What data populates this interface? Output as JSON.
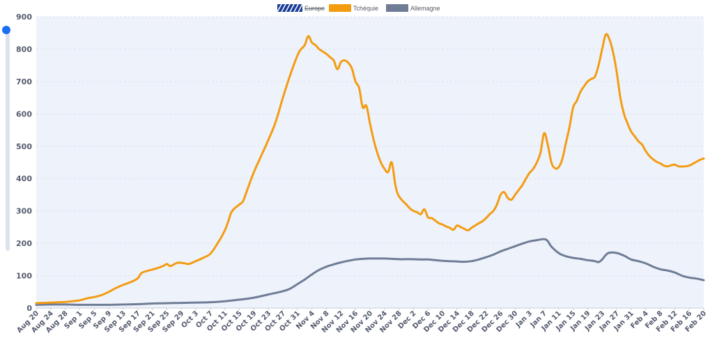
{
  "chart_data": {
    "type": "line",
    "title": "",
    "xlabel": "",
    "ylabel": "",
    "ylim": [
      0,
      900
    ],
    "yticks": [
      0,
      100,
      200,
      300,
      400,
      500,
      600,
      700,
      800,
      900
    ],
    "grid": true,
    "legend_position": "top-center",
    "x_range": [
      0,
      184
    ],
    "xtick_labels": [
      "Aug 20",
      "Aug 24",
      "Aug 28",
      "Sep 1",
      "Sep 5",
      "Sep 9",
      "Sep 13",
      "Sep 17",
      "Sep 21",
      "Sep 25",
      "Sep 29",
      "Oct 3",
      "Oct 7",
      "Oct 11",
      "Oct 15",
      "Oct 19",
      "Oct 23",
      "Oct 27",
      "Oct 31",
      "Nov 4",
      "Nov 8",
      "Nov 12",
      "Nov 16",
      "Nov 20",
      "Nov 24",
      "Nov 28",
      "Dec 2",
      "Dec 6",
      "Dec 10",
      "Dec 14",
      "Dec 18",
      "Dec 22",
      "Dec 26",
      "Dec 30",
      "Jan 3",
      "Jan 7",
      "Jan 11",
      "Jan 15",
      "Jan 19",
      "Jan 23",
      "Jan 27",
      "Jan 31",
      "Feb 4",
      "Feb 8",
      "Feb 12",
      "Feb 16",
      "Feb 20"
    ],
    "tick_step_days": 4,
    "series": [
      {
        "name": "Europe",
        "color": "#1a3d96",
        "hidden": true,
        "points": []
      },
      {
        "name": "Tchéquie",
        "color": "#f39c12",
        "hidden": false,
        "points": [
          [
            0,
            15
          ],
          [
            2,
            16
          ],
          [
            4,
            17
          ],
          [
            6,
            18
          ],
          [
            8,
            19
          ],
          [
            10,
            21
          ],
          [
            12,
            24
          ],
          [
            14,
            30
          ],
          [
            16,
            34
          ],
          [
            18,
            40
          ],
          [
            20,
            50
          ],
          [
            22,
            62
          ],
          [
            24,
            72
          ],
          [
            26,
            80
          ],
          [
            28,
            92
          ],
          [
            29,
            108
          ],
          [
            31,
            116
          ],
          [
            33,
            122
          ],
          [
            35,
            130
          ],
          [
            36,
            136
          ],
          [
            37,
            130
          ],
          [
            39,
            140
          ],
          [
            41,
            138
          ],
          [
            42,
            136
          ],
          [
            44,
            145
          ],
          [
            46,
            155
          ],
          [
            48,
            168
          ],
          [
            50,
            200
          ],
          [
            52,
            240
          ],
          [
            53,
            270
          ],
          [
            54,
            300
          ],
          [
            56,
            320
          ],
          [
            57,
            330
          ],
          [
            58,
            360
          ],
          [
            60,
            420
          ],
          [
            62,
            470
          ],
          [
            64,
            520
          ],
          [
            66,
            575
          ],
          [
            68,
            650
          ],
          [
            70,
            720
          ],
          [
            72,
            780
          ],
          [
            73,
            800
          ],
          [
            74,
            812
          ],
          [
            75,
            840
          ],
          [
            76,
            820
          ],
          [
            77,
            812
          ],
          [
            78,
            800
          ],
          [
            80,
            785
          ],
          [
            81,
            775
          ],
          [
            82,
            765
          ],
          [
            83,
            738
          ],
          [
            84,
            760
          ],
          [
            85,
            765
          ],
          [
            86,
            758
          ],
          [
            87,
            740
          ],
          [
            88,
            700
          ],
          [
            89,
            680
          ],
          [
            90,
            620
          ],
          [
            91,
            625
          ],
          [
            92,
            570
          ],
          [
            93,
            520
          ],
          [
            94,
            480
          ],
          [
            95,
            450
          ],
          [
            96,
            430
          ],
          [
            97,
            420
          ],
          [
            98,
            450
          ],
          [
            99,
            380
          ],
          [
            100,
            345
          ],
          [
            102,
            320
          ],
          [
            103,
            308
          ],
          [
            104,
            300
          ],
          [
            105,
            296
          ],
          [
            106,
            290
          ],
          [
            107,
            305
          ],
          [
            108,
            280
          ],
          [
            109,
            278
          ],
          [
            110,
            270
          ],
          [
            111,
            262
          ],
          [
            112,
            258
          ],
          [
            113,
            252
          ],
          [
            114,
            248
          ],
          [
            115,
            242
          ],
          [
            116,
            255
          ],
          [
            117,
            250
          ],
          [
            118,
            245
          ],
          [
            119,
            240
          ],
          [
            120,
            248
          ],
          [
            121,
            255
          ],
          [
            122,
            262
          ],
          [
            123,
            268
          ],
          [
            124,
            278
          ],
          [
            125,
            290
          ],
          [
            126,
            300
          ],
          [
            127,
            320
          ],
          [
            128,
            350
          ],
          [
            129,
            358
          ],
          [
            130,
            340
          ],
          [
            131,
            335
          ],
          [
            132,
            350
          ],
          [
            133,
            365
          ],
          [
            134,
            380
          ],
          [
            135,
            400
          ],
          [
            136,
            418
          ],
          [
            137,
            430
          ],
          [
            138,
            450
          ],
          [
            139,
            480
          ],
          [
            140,
            540
          ],
          [
            141,
            505
          ],
          [
            142,
            450
          ],
          [
            143,
            432
          ],
          [
            144,
            435
          ],
          [
            145,
            460
          ],
          [
            146,
            510
          ],
          [
            147,
            560
          ],
          [
            148,
            620
          ],
          [
            149,
            640
          ],
          [
            150,
            668
          ],
          [
            151,
            685
          ],
          [
            152,
            700
          ],
          [
            153,
            708
          ],
          [
            154,
            715
          ],
          [
            155,
            750
          ],
          [
            156,
            800
          ],
          [
            157,
            845
          ],
          [
            158,
            830
          ],
          [
            159,
            790
          ],
          [
            160,
            730
          ],
          [
            161,
            650
          ],
          [
            162,
            600
          ],
          [
            163,
            570
          ],
          [
            164,
            545
          ],
          [
            165,
            530
          ],
          [
            166,
            515
          ],
          [
            167,
            505
          ],
          [
            168,
            485
          ],
          [
            169,
            470
          ],
          [
            170,
            460
          ],
          [
            171,
            452
          ],
          [
            172,
            447
          ],
          [
            173,
            440
          ],
          [
            174,
            438
          ],
          [
            175,
            441
          ],
          [
            176,
            443
          ],
          [
            177,
            438
          ],
          [
            178,
            437
          ],
          [
            179,
            438
          ],
          [
            180,
            440
          ],
          [
            181,
            446
          ],
          [
            182,
            452
          ],
          [
            183,
            458
          ],
          [
            184,
            462
          ]
        ]
      },
      {
        "name": "Allemagne",
        "color": "#6e7c95",
        "hidden": false,
        "points": [
          [
            0,
            10
          ],
          [
            4,
            11
          ],
          [
            8,
            11
          ],
          [
            12,
            10
          ],
          [
            16,
            10
          ],
          [
            20,
            10
          ],
          [
            24,
            11
          ],
          [
            28,
            12
          ],
          [
            32,
            14
          ],
          [
            36,
            15
          ],
          [
            40,
            16
          ],
          [
            44,
            17
          ],
          [
            48,
            18
          ],
          [
            52,
            21
          ],
          [
            56,
            26
          ],
          [
            60,
            32
          ],
          [
            64,
            42
          ],
          [
            68,
            52
          ],
          [
            70,
            60
          ],
          [
            72,
            74
          ],
          [
            74,
            88
          ],
          [
            76,
            104
          ],
          [
            78,
            118
          ],
          [
            80,
            128
          ],
          [
            82,
            135
          ],
          [
            84,
            141
          ],
          [
            86,
            146
          ],
          [
            88,
            150
          ],
          [
            90,
            152
          ],
          [
            92,
            153
          ],
          [
            94,
            153
          ],
          [
            96,
            153
          ],
          [
            98,
            152
          ],
          [
            100,
            151
          ],
          [
            102,
            151
          ],
          [
            104,
            151
          ],
          [
            106,
            150
          ],
          [
            108,
            150
          ],
          [
            110,
            148
          ],
          [
            112,
            146
          ],
          [
            114,
            145
          ],
          [
            116,
            144
          ],
          [
            118,
            143
          ],
          [
            120,
            145
          ],
          [
            122,
            150
          ],
          [
            124,
            157
          ],
          [
            126,
            165
          ],
          [
            128,
            175
          ],
          [
            130,
            183
          ],
          [
            132,
            191
          ],
          [
            134,
            199
          ],
          [
            136,
            206
          ],
          [
            138,
            210
          ],
          [
            140,
            213
          ],
          [
            141,
            207
          ],
          [
            142,
            190
          ],
          [
            144,
            170
          ],
          [
            146,
            160
          ],
          [
            148,
            155
          ],
          [
            150,
            152
          ],
          [
            152,
            148
          ],
          [
            154,
            145
          ],
          [
            155,
            142
          ],
          [
            156,
            150
          ],
          [
            157,
            164
          ],
          [
            158,
            171
          ],
          [
            160,
            170
          ],
          [
            162,
            162
          ],
          [
            164,
            150
          ],
          [
            166,
            145
          ],
          [
            168,
            138
          ],
          [
            170,
            128
          ],
          [
            172,
            120
          ],
          [
            174,
            116
          ],
          [
            176,
            110
          ],
          [
            178,
            100
          ],
          [
            180,
            94
          ],
          [
            182,
            91
          ],
          [
            184,
            86
          ]
        ]
      }
    ]
  },
  "colors": {
    "plot_background": "#eef2fa",
    "gridline": "#dbe2ee",
    "axis_text": "#545b6e",
    "slider_handle": "#1b6ef3",
    "slider_track": "#dde3ee"
  }
}
